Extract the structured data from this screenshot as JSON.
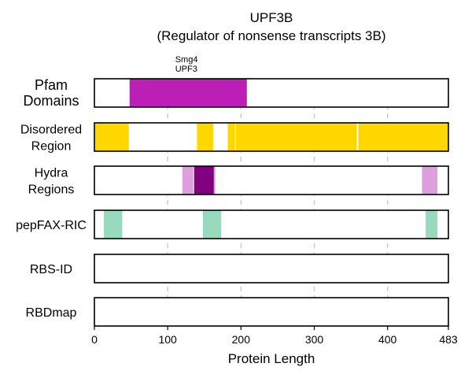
{
  "chart_data": {
    "type": "track",
    "title_line1": "UPF3B",
    "title_line2": "(Regulator of nonsense transcripts 3B)",
    "xlabel": "Protein Length",
    "xlim": [
      0,
      483
    ],
    "xticks": [
      0,
      100,
      200,
      300,
      400,
      483
    ],
    "grid": true,
    "tracks": [
      {
        "label_lines": [
          "Pfam",
          "Domains"
        ],
        "segments": [
          {
            "start": 48,
            "end": 208,
            "color": "#BB1FB5",
            "label_lines": [
              "Smg4",
              "UPF3"
            ]
          }
        ]
      },
      {
        "label_lines": [
          "Disordered",
          "Region"
        ],
        "segments": [
          {
            "start": 1,
            "end": 47,
            "color": "#FFD700"
          },
          {
            "start": 140,
            "end": 162,
            "color": "#FFD700"
          },
          {
            "start": 182,
            "end": 192,
            "color": "#FFD700"
          },
          {
            "start": 193,
            "end": 358,
            "color": "#FFD700"
          },
          {
            "start": 360,
            "end": 483,
            "color": "#FFD700"
          }
        ]
      },
      {
        "label_lines": [
          "Hydra",
          "Regions"
        ],
        "segments": [
          {
            "start": 120,
            "end": 135,
            "color": "#DDA0DD"
          },
          {
            "start": 136,
            "end": 163,
            "color": "#800080"
          },
          {
            "start": 163,
            "end": 165,
            "color": "#DDA0DD"
          },
          {
            "start": 447,
            "end": 468,
            "color": "#DDA0DD"
          }
        ]
      },
      {
        "label_lines": [
          "pepFAX-RIC"
        ],
        "segments": [
          {
            "start": 13,
            "end": 38,
            "color": "#99D9BD"
          },
          {
            "start": 148,
            "end": 173,
            "color": "#99D9BD"
          },
          {
            "start": 452,
            "end": 468,
            "color": "#99D9BD"
          }
        ]
      },
      {
        "label_lines": [
          "RBS-ID"
        ],
        "segments": []
      },
      {
        "label_lines": [
          "RBDmap"
        ],
        "segments": []
      }
    ]
  }
}
